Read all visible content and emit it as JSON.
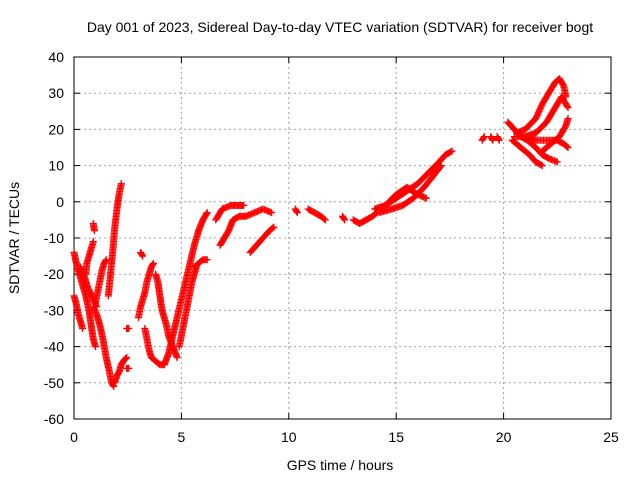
{
  "chart_data": {
    "type": "scatter",
    "title": "Day 001 of 2023, Sidereal Day-to-day VTEC variation (SDTVAR) for receiver bogt",
    "xlabel": "GPS time / hours",
    "ylabel": "SDTVAR / TECUs",
    "xlim": [
      0,
      25
    ],
    "ylim": [
      -60,
      40
    ],
    "xticks": [
      0,
      5,
      10,
      15,
      20,
      25
    ],
    "yticks": [
      -60,
      -50,
      -40,
      -30,
      -20,
      -10,
      0,
      10,
      20,
      30,
      40
    ],
    "grid": true,
    "legend": "none",
    "marker": "+",
    "color": "#ff0000",
    "series": [
      {
        "segments": [
          [
            [
              0.0,
              -14
            ],
            [
              0.15,
              -18
            ],
            [
              0.35,
              -22
            ],
            [
              0.55,
              -26
            ],
            [
              0.7,
              -30
            ],
            [
              0.8,
              -34
            ],
            [
              0.9,
              -38
            ],
            [
              1.0,
              -40
            ]
          ],
          [
            [
              0.0,
              -26
            ],
            [
              0.1,
              -28
            ],
            [
              0.2,
              -31
            ],
            [
              0.3,
              -33
            ],
            [
              0.4,
              -35
            ]
          ],
          [
            [
              0.3,
              -18
            ],
            [
              0.45,
              -20
            ],
            [
              0.6,
              -23
            ],
            [
              0.75,
              -25
            ],
            [
              0.9,
              -27
            ],
            [
              1.05,
              -29
            ]
          ],
          [
            [
              0.55,
              -20
            ],
            [
              0.6,
              -17
            ],
            [
              0.7,
              -15
            ],
            [
              0.8,
              -13
            ],
            [
              0.9,
              -11
            ]
          ],
          [
            [
              0.9,
              -6
            ],
            [
              0.95,
              -8
            ]
          ],
          [
            [
              0.9,
              -29
            ],
            [
              1.05,
              -31
            ],
            [
              1.2,
              -34
            ],
            [
              1.35,
              -38
            ],
            [
              1.5,
              -43
            ],
            [
              1.65,
              -47
            ],
            [
              1.75,
              -50
            ],
            [
              1.85,
              -51
            ]
          ],
          [
            [
              1.0,
              -28
            ],
            [
              1.1,
              -25
            ],
            [
              1.2,
              -22
            ],
            [
              1.3,
              -19
            ],
            [
              1.4,
              -17
            ],
            [
              1.5,
              -16
            ]
          ],
          [
            [
              1.6,
              -26
            ],
            [
              1.7,
              -20
            ],
            [
              1.8,
              -14
            ],
            [
              1.9,
              -7
            ],
            [
              2.0,
              -2
            ],
            [
              2.1,
              2
            ],
            [
              2.2,
              5
            ]
          ],
          [
            [
              1.9,
              -50
            ],
            [
              2.0,
              -48
            ],
            [
              2.1,
              -47
            ],
            [
              2.2,
              -45
            ],
            [
              2.3,
              -44
            ],
            [
              2.45,
              -43
            ]
          ],
          [
            [
              2.45,
              -35
            ],
            [
              2.55,
              -35
            ]
          ],
          [
            [
              2.45,
              -46
            ],
            [
              2.55,
              -46
            ]
          ],
          [
            [
              3.1,
              -14
            ],
            [
              3.2,
              -15
            ]
          ],
          [
            [
              3.0,
              -32
            ],
            [
              3.1,
              -29
            ],
            [
              3.2,
              -27
            ],
            [
              3.3,
              -25
            ],
            [
              3.4,
              -22
            ],
            [
              3.5,
              -20
            ],
            [
              3.6,
              -18
            ],
            [
              3.7,
              -17
            ]
          ],
          [
            [
              3.3,
              -35
            ],
            [
              3.4,
              -38
            ],
            [
              3.5,
              -41
            ],
            [
              3.6,
              -43
            ],
            [
              3.8,
              -44
            ],
            [
              4.0,
              -45
            ],
            [
              4.2,
              -45
            ]
          ],
          [
            [
              3.8,
              -20
            ],
            [
              3.9,
              -22
            ],
            [
              4.0,
              -26
            ],
            [
              4.1,
              -30
            ],
            [
              4.2,
              -32
            ],
            [
              4.3,
              -34
            ],
            [
              4.4,
              -37
            ],
            [
              4.6,
              -40
            ],
            [
              4.8,
              -43
            ]
          ],
          [
            [
              4.2,
              -45
            ],
            [
              4.4,
              -42
            ],
            [
              4.6,
              -37
            ],
            [
              4.8,
              -32
            ],
            [
              5.0,
              -27
            ],
            [
              5.2,
              -22
            ],
            [
              5.4,
              -17
            ],
            [
              5.6,
              -12
            ],
            [
              5.8,
              -8
            ]
          ],
          [
            [
              4.9,
              -40
            ],
            [
              5.1,
              -34
            ],
            [
              5.3,
              -28
            ],
            [
              5.5,
              -22
            ],
            [
              5.7,
              -18
            ]
          ],
          [
            [
              5.8,
              -8
            ],
            [
              6.0,
              -5
            ],
            [
              6.2,
              -3
            ]
          ],
          [
            [
              5.6,
              -18
            ],
            [
              5.8,
              -17
            ],
            [
              6.0,
              -16
            ],
            [
              6.2,
              -16
            ]
          ],
          [
            [
              6.8,
              -12
            ],
            [
              7.0,
              -10
            ],
            [
              7.2,
              -8
            ],
            [
              7.4,
              -5
            ],
            [
              7.7,
              -4
            ],
            [
              8.0,
              -4
            ],
            [
              8.4,
              -3
            ],
            [
              8.8,
              -2
            ],
            [
              9.2,
              -3
            ]
          ],
          [
            [
              6.6,
              -5
            ],
            [
              6.9,
              -2
            ],
            [
              7.3,
              -1
            ],
            [
              7.6,
              -1
            ],
            [
              7.9,
              -1
            ]
          ],
          [
            [
              8.2,
              -14
            ],
            [
              8.5,
              -12
            ],
            [
              8.8,
              -10
            ],
            [
              9.1,
              -8
            ],
            [
              9.3,
              -7
            ]
          ],
          [
            [
              10.3,
              -2
            ],
            [
              10.4,
              -3
            ]
          ],
          [
            [
              10.9,
              -2
            ],
            [
              11.2,
              -3
            ],
            [
              11.5,
              -4
            ],
            [
              11.7,
              -5
            ]
          ],
          [
            [
              12.5,
              -4
            ],
            [
              12.6,
              -5
            ]
          ],
          [
            [
              13.0,
              -5
            ],
            [
              13.3,
              -6
            ],
            [
              13.6,
              -5
            ],
            [
              13.9,
              -4
            ],
            [
              14.1,
              -3
            ]
          ],
          [
            [
              14.0,
              -2
            ],
            [
              14.5,
              -1
            ],
            [
              15.0,
              1
            ],
            [
              15.5,
              3
            ],
            [
              16.0,
              5
            ],
            [
              16.5,
              8
            ],
            [
              17.0,
              11
            ],
            [
              17.3,
              13
            ],
            [
              17.6,
              14
            ]
          ],
          [
            [
              14.2,
              -3
            ],
            [
              14.8,
              -2
            ],
            [
              15.3,
              -1
            ],
            [
              15.8,
              1
            ],
            [
              16.3,
              4
            ],
            [
              16.7,
              7
            ],
            [
              17.1,
              10
            ]
          ],
          [
            [
              14.5,
              -1
            ],
            [
              15.0,
              2
            ],
            [
              15.5,
              4
            ],
            [
              16.0,
              2
            ],
            [
              16.4,
              1
            ]
          ],
          [
            [
              19.0,
              17
            ],
            [
              19.1,
              18
            ]
          ],
          [
            [
              19.4,
              18
            ],
            [
              19.5,
              17
            ]
          ],
          [
            [
              19.7,
              18
            ],
            [
              19.8,
              17
            ]
          ],
          [
            [
              20.2,
              22
            ],
            [
              20.5,
              20
            ],
            [
              20.8,
              18
            ],
            [
              21.1,
              17
            ],
            [
              21.5,
              15
            ],
            [
              21.8,
              13
            ],
            [
              22.1,
              12
            ],
            [
              22.5,
              11
            ]
          ],
          [
            [
              20.4,
              17
            ],
            [
              20.8,
              15
            ],
            [
              21.2,
              13
            ],
            [
              21.5,
              11
            ],
            [
              21.8,
              10
            ]
          ],
          [
            [
              20.6,
              19
            ],
            [
              21.0,
              20
            ],
            [
              21.5,
              23
            ],
            [
              21.8,
              27
            ],
            [
              22.1,
              30
            ],
            [
              22.4,
              33
            ],
            [
              22.6,
              34
            ],
            [
              22.8,
              32
            ],
            [
              22.9,
              29
            ]
          ],
          [
            [
              21.0,
              18
            ],
            [
              21.5,
              19
            ],
            [
              22.0,
              22
            ],
            [
              22.4,
              26
            ],
            [
              22.7,
              29
            ],
            [
              23.0,
              26
            ]
          ],
          [
            [
              20.5,
              18
            ],
            [
              21.0,
              18
            ],
            [
              21.5,
              17
            ],
            [
              22.0,
              17
            ],
            [
              22.5,
              17
            ],
            [
              22.8,
              16
            ],
            [
              23.0,
              15
            ]
          ],
          [
            [
              21.8,
              14
            ],
            [
              22.2,
              16
            ],
            [
              22.6,
              18
            ],
            [
              22.9,
              21
            ],
            [
              23.0,
              23
            ]
          ]
        ]
      }
    ]
  }
}
